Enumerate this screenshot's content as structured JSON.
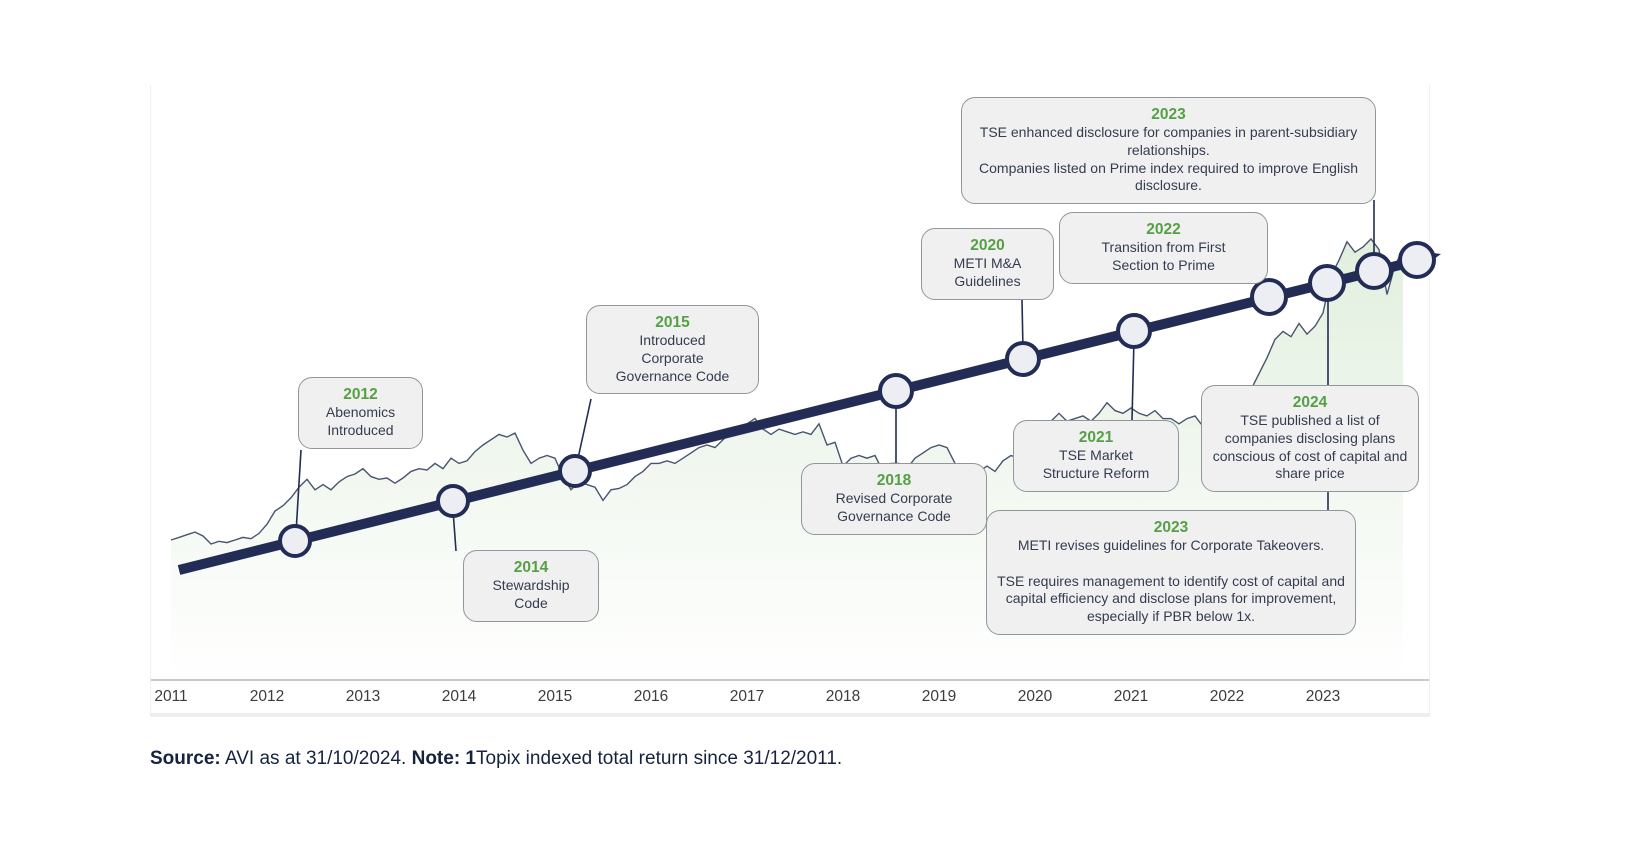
{
  "source_note": {
    "source_label": "Source:",
    "source_text": " AVI as at 31/10/2024. ",
    "note_label": "Note: 1",
    "note_text": "Topix indexed total return since 31/12/2011."
  },
  "chart_data": {
    "type": "line",
    "x_tick_labels": [
      "2011",
      "2012",
      "2013",
      "2014",
      "2015",
      "2016",
      "2017",
      "2018",
      "2019",
      "2020",
      "2021",
      "2022",
      "2023"
    ],
    "x_range": "monthly, 31/12/2011 to 31/10/2024",
    "y_axis_visible": false,
    "grid": false,
    "series": [
      {
        "name": "Topix indexed total return (31/12/2011 = 100)",
        "values": [
          100,
          102,
          104,
          106,
          103,
          97,
          99,
          98,
          100,
          102,
          101,
          105,
          112,
          122,
          126,
          132,
          140,
          146,
          138,
          142,
          138,
          144,
          148,
          150,
          154,
          148,
          146,
          147,
          143,
          147,
          152,
          154,
          153,
          158,
          154,
          162,
          158,
          160,
          167,
          172,
          176,
          180,
          178,
          181,
          168,
          158,
          162,
          164,
          162,
          148,
          138,
          144,
          142,
          140,
          130,
          138,
          139,
          142,
          148,
          152,
          158,
          158,
          160,
          158,
          162,
          166,
          170,
          172,
          170,
          176,
          182,
          184,
          188,
          192,
          184,
          180,
          184,
          182,
          180,
          182,
          180,
          188,
          172,
          174,
          156,
          162,
          164,
          162,
          164,
          152,
          158,
          158,
          154,
          162,
          166,
          170,
          172,
          170,
          158,
          138,
          146,
          152,
          156,
          152,
          160,
          164,
          162,
          172,
          178,
          186,
          190,
          196,
          190,
          192,
          194,
          190,
          196,
          204,
          198,
          196,
          200,
          196,
          194,
          198,
          192,
          192,
          188,
          192,
          194,
          186,
          192,
          198,
          194,
          196,
          204,
          214,
          226,
          238,
          252,
          258,
          254,
          264,
          256,
          262,
          272,
          300,
          312,
          326,
          318,
          322,
          328,
          320,
          286,
          308,
          320
        ]
      }
    ],
    "trend_arrow": "thick navy ascending arrow with circular event markers",
    "events": [
      {
        "year": "2012",
        "text": "Abenomics\nIntroduced"
      },
      {
        "year": "2014",
        "text": "Stewardship\nCode"
      },
      {
        "year": "2015",
        "text": "Introduced\nCorporate\nGovernance Code"
      },
      {
        "year": "2018",
        "text": "Revised Corporate\nGovernance Code"
      },
      {
        "year": "2020",
        "text": "METI M&A\nGuidelines"
      },
      {
        "year": "2021",
        "text": "TSE Market\nStructure Reform"
      },
      {
        "year": "2022",
        "text": "Transition from First\nSection to Prime"
      },
      {
        "year": "2023",
        "text": "TSE enhanced disclosure for companies in parent-subsidiary relationships.\nCompanies listed on Prime index required to improve English disclosure."
      },
      {
        "year": "2023",
        "text": "METI revises guidelines for Corporate Takeovers.\n\nTSE requires management to identify cost of capital and capital efficiency and disclose plans for improvement, especially if PBR below 1x."
      },
      {
        "year": "2024",
        "text": "TSE published a list of companies disclosing plans conscious of cost of capital and share price"
      }
    ],
    "colors": {
      "trend_arrow_navy": "#222c54",
      "marker_fill": "#eceef3",
      "topix_line": "#49536e",
      "area_fill_top": "#e0eedc",
      "event_year_green": "#55a045",
      "callout_bg": "#f0f0f0",
      "callout_border": "#8f969c",
      "axis_line": "#c9c9c9"
    }
  }
}
